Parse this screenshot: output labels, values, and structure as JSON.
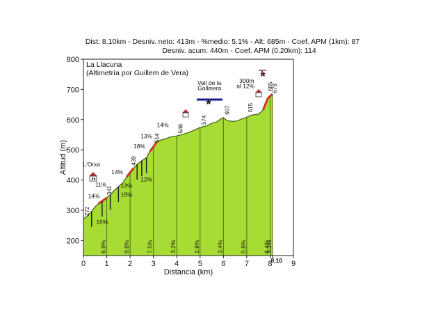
{
  "header": {
    "line1": "Dist: 8.10km - Desniv. neto: 413m - %medio: 5.1% - Alt: 685m - Coef. APM (1km): 87",
    "line2": "Desniv. acum: 440m - Coef. APM (0.20km): 114"
  },
  "chart_data": {
    "type": "area",
    "title": "La Llacuna",
    "subtitle": "(Altimetría por Guillem de Vera)",
    "xlabel": "Distancia (km)",
    "ylabel": "Altitud (m)",
    "xlim": [
      0,
      9
    ],
    "ylim": [
      150,
      800
    ],
    "x_ticks": [
      "0",
      "1",
      "2",
      "3",
      "4",
      "5",
      "6",
      "7",
      "8",
      "8.10",
      "9"
    ],
    "y_ticks": [
      "200",
      "300",
      "400",
      "500",
      "600",
      "700",
      "800"
    ],
    "fill_color": "#a7dc35",
    "steep_color": "#d0341c",
    "profile": {
      "x": [
        0,
        0.15,
        0.35,
        0.5,
        0.65,
        0.8,
        0.9,
        1.0,
        1.15,
        1.3,
        1.5,
        1.7,
        1.85,
        2.0,
        2.15,
        2.3,
        2.5,
        2.7,
        2.85,
        3.0,
        3.15,
        3.3,
        3.5,
        3.7,
        4.0,
        4.3,
        4.6,
        5.0,
        5.3,
        5.5,
        5.7,
        5.85,
        6.0,
        6.1,
        6.2,
        6.4,
        6.6,
        6.8,
        7.0,
        7.2,
        7.5,
        7.7,
        7.9,
        8.1
      ],
      "y": [
        272,
        280,
        296,
        312,
        322,
        330,
        336,
        341,
        352,
        364,
        378,
        392,
        410,
        425,
        439,
        452,
        464,
        474,
        495,
        510,
        527,
        532,
        536,
        542,
        546,
        552,
        560,
        574,
        580,
        588,
        592,
        600,
        607,
        600,
        596,
        594,
        596,
        603,
        608,
        615,
        618,
        632,
        670,
        685
      ]
    },
    "km_gradients": [
      {
        "km": 1,
        "value": "6.9%"
      },
      {
        "km": 2,
        "value": "9.8%"
      },
      {
        "km": 3,
        "value": "7.5%"
      },
      {
        "km": 4,
        "value": "3.2%"
      },
      {
        "km": 5,
        "value": "2.8%"
      },
      {
        "km": 6,
        "value": "3.4%"
      },
      {
        "km": 7,
        "value": "0.8%"
      },
      {
        "km": 8,
        "value": "6.4%"
      },
      {
        "km": 8.1,
        "value": "3.3%"
      }
    ],
    "altitude_labels": [
      {
        "x": 0.15,
        "y": 272,
        "text": "272"
      },
      {
        "x": 1.1,
        "y": 341,
        "text": "341"
      },
      {
        "x": 2.15,
        "y": 439,
        "text": "439"
      },
      {
        "x": 3.15,
        "y": 514,
        "text": "514"
      },
      {
        "x": 4.15,
        "y": 546,
        "text": "546"
      },
      {
        "x": 5.15,
        "y": 574,
        "text": "574"
      },
      {
        "x": 6.15,
        "y": 607,
        "text": "607"
      },
      {
        "x": 7.15,
        "y": 615,
        "text": "615"
      },
      {
        "x": 8.0,
        "y": 685,
        "text": "685"
      },
      {
        "x": 8.2,
        "y": 679,
        "text": "679"
      }
    ],
    "percent_labels": [
      {
        "x": 0.45,
        "y": 340,
        "text": "14%"
      },
      {
        "x": 0.8,
        "y": 255,
        "text": "16%"
      },
      {
        "x": 0.75,
        "y": 378,
        "text": "11%"
      },
      {
        "x": 1.45,
        "y": 420,
        "text": "14%"
      },
      {
        "x": 1.85,
        "y": 375,
        "text": "13%"
      },
      {
        "x": 1.85,
        "y": 345,
        "text": "15%"
      },
      {
        "x": 2.7,
        "y": 395,
        "text": "12%"
      },
      {
        "x": 2.4,
        "y": 505,
        "text": "18%"
      },
      {
        "x": 2.7,
        "y": 538,
        "text": "13%"
      },
      {
        "x": 3.4,
        "y": 575,
        "text": "14%"
      }
    ],
    "annotations": [
      {
        "text": "L'Orxa",
        "x": 0.35,
        "y": 445
      },
      {
        "text": "Vall de la",
        "x": 5.4,
        "y": 715
      },
      {
        "text": "Gallinera",
        "x": 5.4,
        "y": 698
      },
      {
        "text": "300m",
        "x": 7.0,
        "y": 722
      },
      {
        "text": "al 12%",
        "x": 6.95,
        "y": 704
      }
    ]
  }
}
